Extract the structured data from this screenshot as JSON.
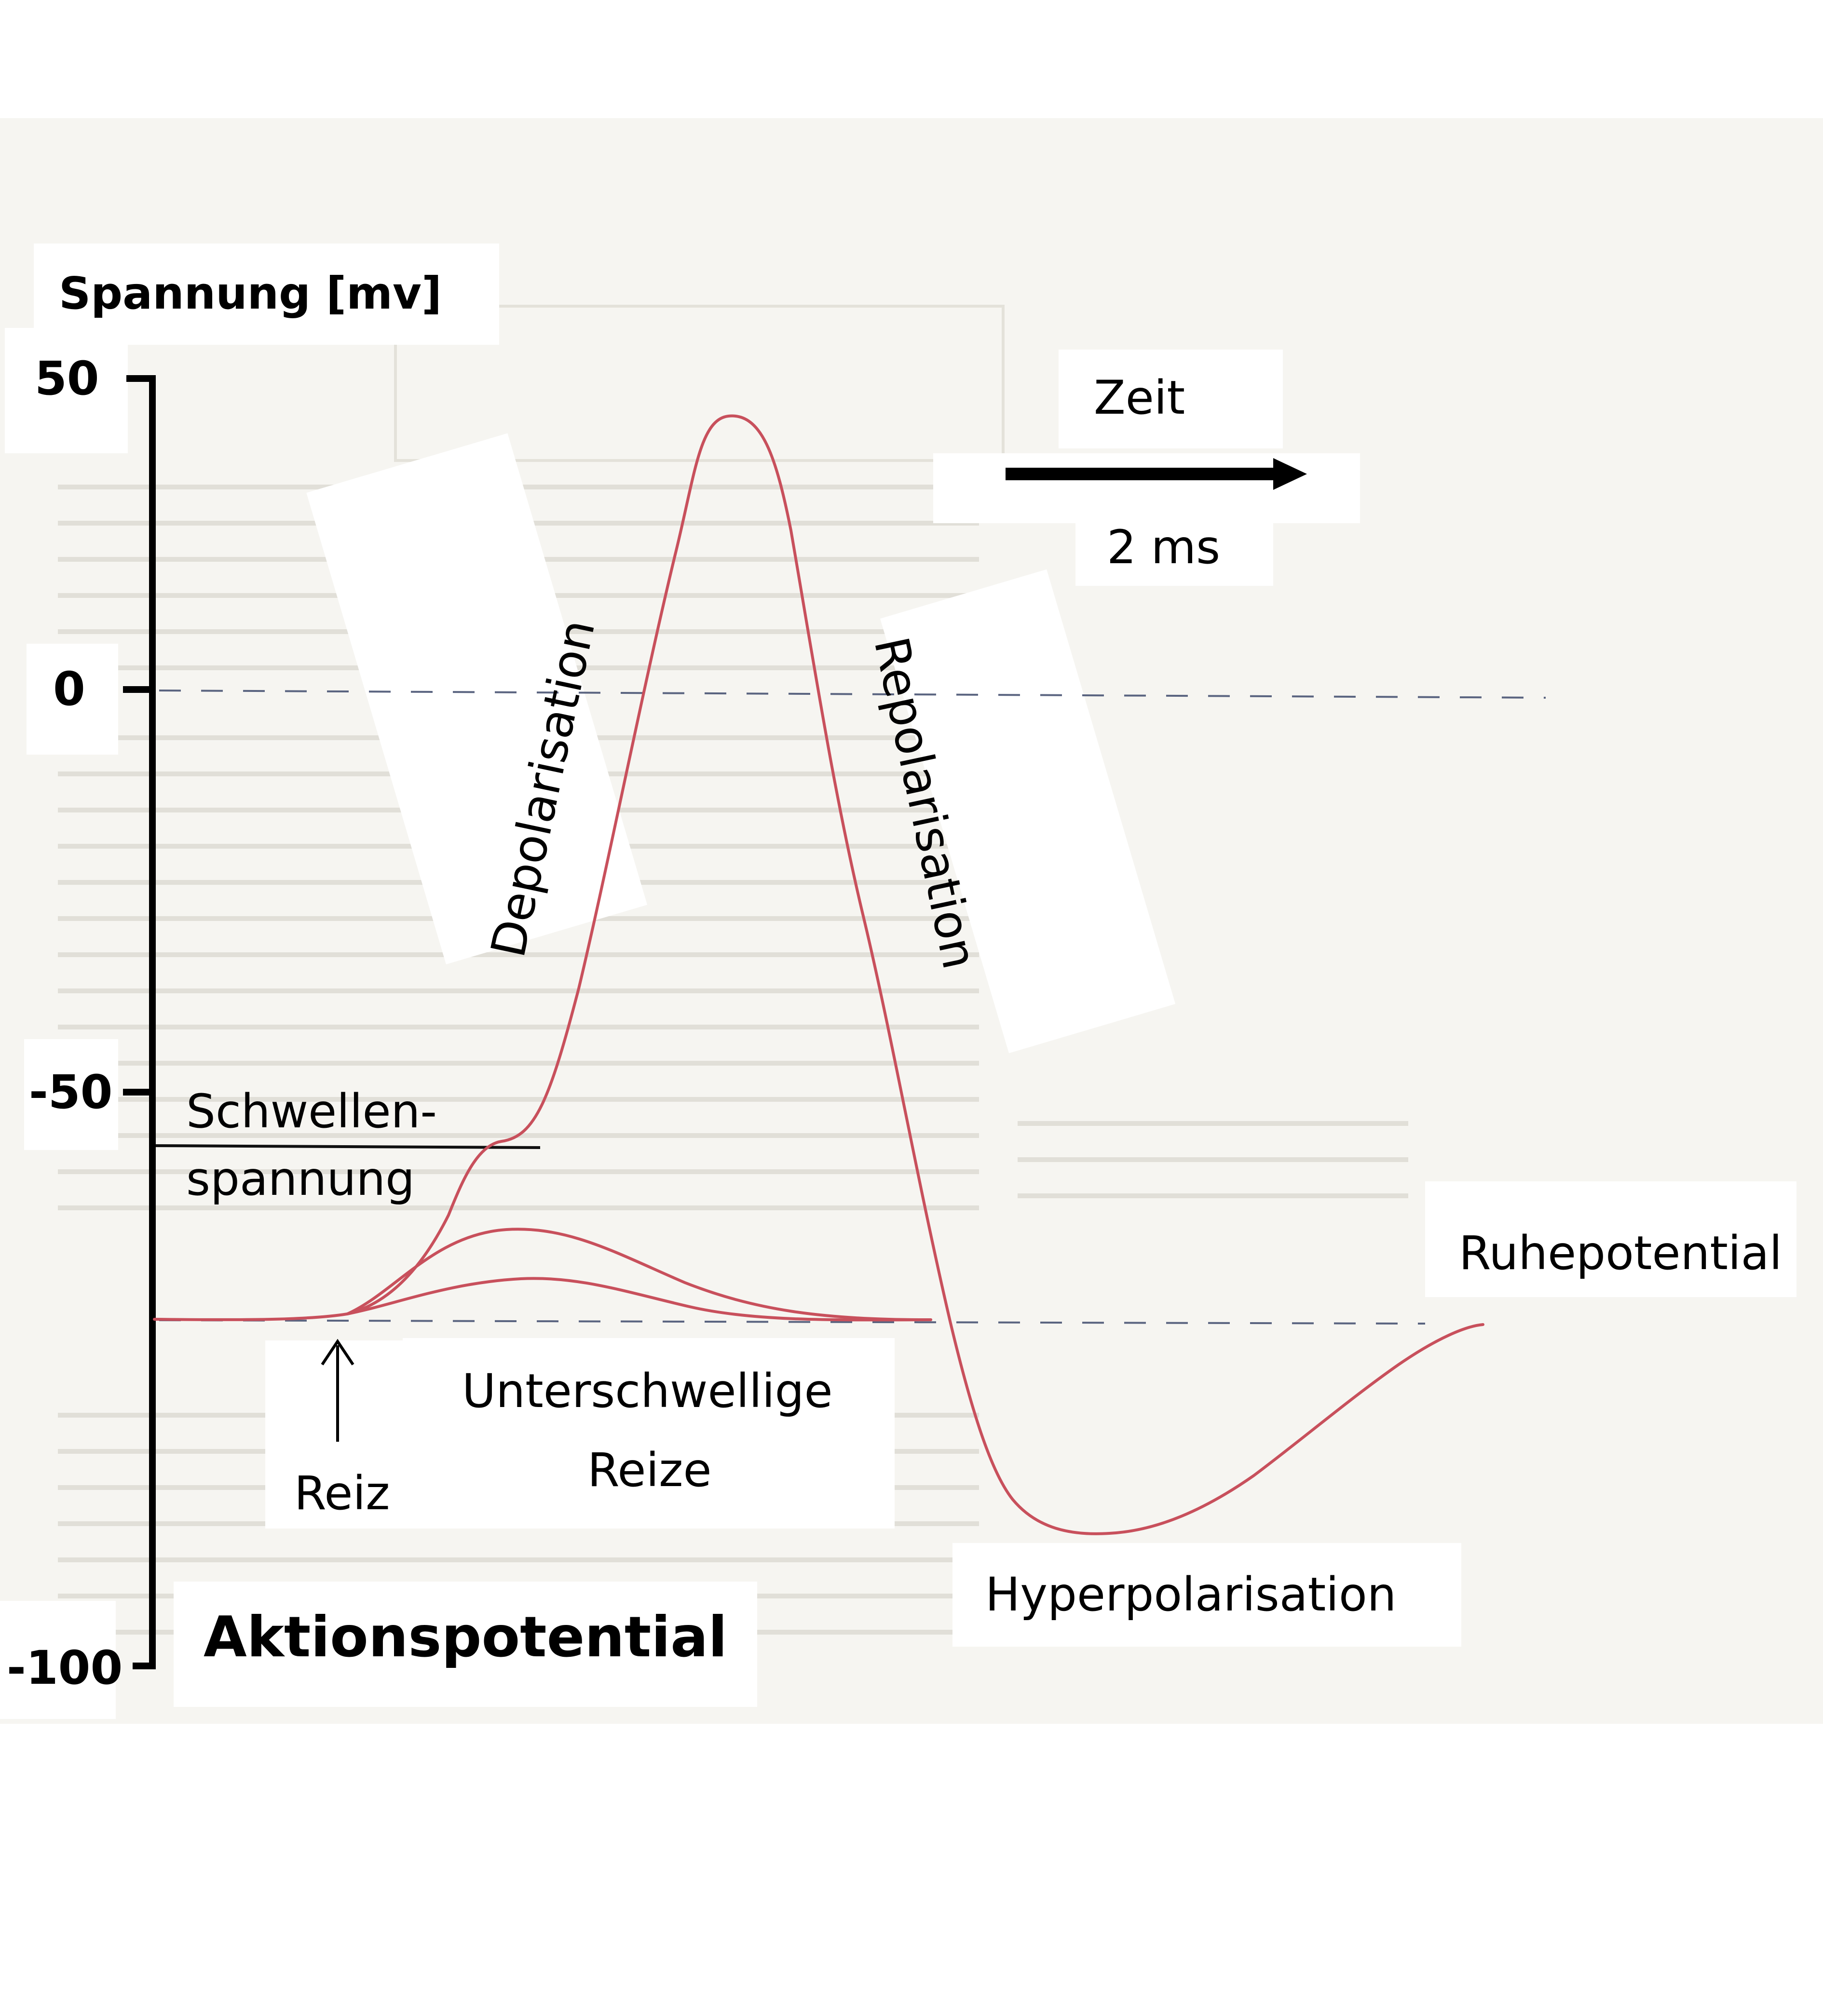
{
  "axis": {
    "title": "Spannung [mv]",
    "ticks": [
      "50",
      "0",
      "-50",
      "-100"
    ]
  },
  "time_scale": {
    "label": "Zeit",
    "value": "2 ms"
  },
  "labels": {
    "depolarisation": "Depolarisation",
    "repolarisation": "Repolarisation",
    "threshold_line1": "Schwellen-",
    "threshold_line2": "spannung",
    "resting_potential": "Ruhepotential",
    "stimulus": "Reiz",
    "subthreshold_line1": "Unterschwellige",
    "subthreshold_line2": "Reize",
    "hyperpolarisation": "Hyperpolarisation",
    "figure_title": "Aktionspotential"
  },
  "colors": {
    "curve": "#c8505c",
    "axis": "#000000",
    "reference_lines": "#5a6480",
    "paper": "#f6f5f1",
    "label_boxes": "#ffffff"
  }
}
